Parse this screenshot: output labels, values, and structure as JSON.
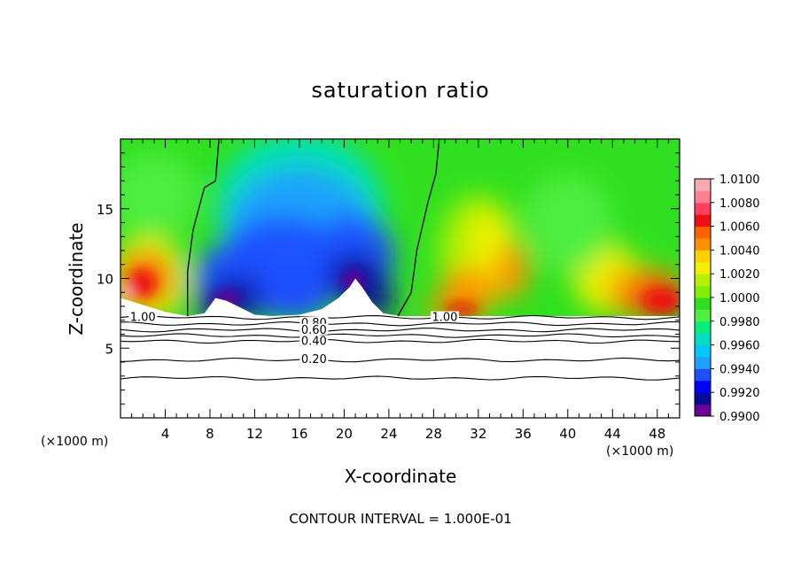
{
  "chart_data": {
    "type": "heatmap",
    "title": "saturation ratio",
    "xlabel": "X-coordinate",
    "ylabel": "Z-coordinate",
    "x_unit_left": "(×1000 m)",
    "x_unit_right": "(×1000 m)",
    "xlim": [
      0,
      50
    ],
    "ylim": [
      0,
      20
    ],
    "x_ticks": [
      4,
      8,
      12,
      16,
      20,
      24,
      28,
      32,
      36,
      40,
      44,
      48
    ],
    "y_ticks": [
      5,
      10,
      15
    ],
    "footer": "CONTOUR INTERVAL = 1.000E-01",
    "colorbar": {
      "min": 0.99,
      "max": 1.01,
      "labels": [
        "1.0100",
        "1.0080",
        "1.0060",
        "1.0040",
        "1.0020",
        "1.0000",
        "0.9980",
        "0.9960",
        "0.9940",
        "0.9920",
        "0.9900"
      ]
    },
    "contour_labels": [
      {
        "text": "1.00",
        "x": 2,
        "y": 7.2
      },
      {
        "text": "1.00",
        "x": 29,
        "y": 7.2
      },
      {
        "text": "0.80",
        "x": 17.3,
        "y": 6.8
      },
      {
        "text": "0.60",
        "x": 17.3,
        "y": 6.3
      },
      {
        "text": "0.40",
        "x": 17.3,
        "y": 5.5
      },
      {
        "text": "0.20",
        "x": 17.3,
        "y": 4.2
      }
    ],
    "contour_lines_y": [
      7.2,
      6.75,
      6.3,
      5.9,
      5.5,
      4.15,
      2.85
    ],
    "unity_contours": [
      {
        "points": [
          [
            6.0,
            7.3
          ],
          [
            6.0,
            10.5
          ],
          [
            6.5,
            13.5
          ],
          [
            7.5,
            16.5
          ],
          [
            8.5,
            17
          ],
          [
            8.8,
            20
          ]
        ]
      },
      {
        "points": [
          [
            24.8,
            7.3
          ],
          [
            26,
            9
          ],
          [
            26.5,
            12
          ],
          [
            27.5,
            15.5
          ],
          [
            28.2,
            17.5
          ],
          [
            28.5,
            20
          ]
        ]
      }
    ],
    "colors": {
      "violet": "#6b0096",
      "navy": "#0a0a9a",
      "blue": "#1e50ff",
      "azure": "#1ea0ff",
      "cyan": "#00e0c0",
      "green_light": "#50ee40",
      "green": "#30e020",
      "yellow_green": "#b4f000",
      "yellow": "#f0f000",
      "orange": "#ff9000",
      "red": "#ee1010",
      "pink": "#f8a8b0"
    }
  }
}
